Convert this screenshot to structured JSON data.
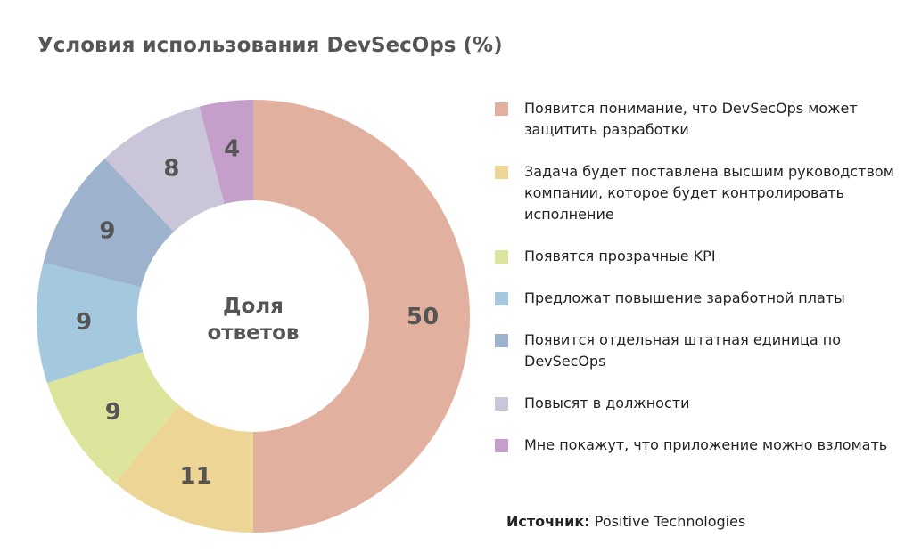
{
  "chart_data": {
    "type": "donut",
    "title": "Условия использования DevSecOps (%)",
    "center_label": [
      "Доля",
      "ответов"
    ],
    "categories": [
      "Появится понимание, что DevSecOps может защитить разработки",
      "Задача будет поставлена высшим руководством компании, которое будет контролировать исполнение",
      "Появятся прозрачные KPI",
      "Предложат повышение заработной платы",
      "Появится отдельная штатная единица по DevSecOps",
      "Повысят в должности",
      "Мне покажут, что приложение можно взломать"
    ],
    "values": [
      50,
      11,
      9,
      9,
      9,
      8,
      4
    ],
    "colors": [
      "#e2b09f",
      "#ecd595",
      "#dde59c",
      "#a4c8de",
      "#9db3cd",
      "#cbc5d9",
      "#c39fc9"
    ],
    "source_label": "Источник:",
    "source": "Positive Technologies"
  }
}
